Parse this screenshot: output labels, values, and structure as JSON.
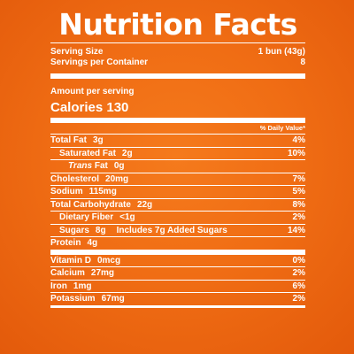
{
  "title": "Nutrition Facts",
  "serving_size_label": "Serving Size",
  "serving_size_value": "1 bun (43g)",
  "servings_label": "Servings per Container",
  "servings_value": "8",
  "amount_per_serving": "Amount per serving",
  "calories": "Calories 130",
  "daily_value_header": "% Daily Value*",
  "nutrients": [
    {
      "label": "Total Fat",
      "amount": "3g",
      "dv": "4%"
    },
    {
      "label": "Saturated Fat",
      "amount": "2g",
      "dv": "10%"
    },
    {
      "label": "Trans",
      "label_suffix": "Fat",
      "amount": "0g",
      "dv": ""
    },
    {
      "label": "Cholesterol",
      "amount": "20mg",
      "dv": "7%"
    },
    {
      "label": "Sodium",
      "amount": "115mg",
      "dv": "5%"
    },
    {
      "label": "Total Carbohydrate",
      "amount": "22g",
      "dv": "8%"
    },
    {
      "label": "Dietary Fiber",
      "amount": "<1g",
      "dv": "2%"
    },
    {
      "label": "Sugars",
      "amount": "8g",
      "extra": "Includes 7g Added Sugars",
      "dv": "14%"
    },
    {
      "label": "Protein",
      "amount": "4g",
      "dv": ""
    }
  ],
  "minerals": [
    {
      "label": "Vitamin D",
      "amount": "0mcg",
      "dv": "0%"
    },
    {
      "label": "Calcium",
      "amount": "27mg",
      "dv": "2%"
    },
    {
      "label": "Iron",
      "amount": "1mg",
      "dv": "6%"
    },
    {
      "label": "Potassium",
      "amount": "67mg",
      "dv": "2%"
    }
  ]
}
